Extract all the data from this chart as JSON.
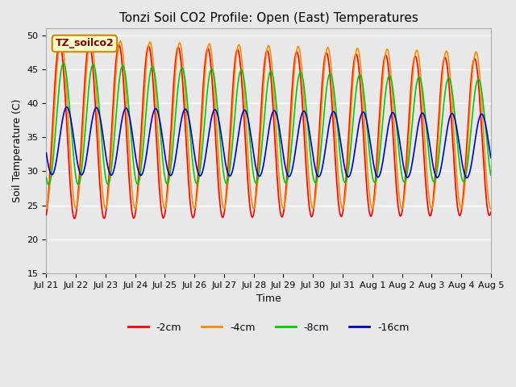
{
  "title": "Tonzi Soil CO2 Profile: Open (East) Temperatures",
  "ylabel": "Soil Temperature (C)",
  "xlabel": "Time",
  "ylim": [
    15,
    51
  ],
  "yticks": [
    15,
    20,
    25,
    30,
    35,
    40,
    45,
    50
  ],
  "background_color": "#e8e8e8",
  "grid_color": "#ffffff",
  "legend_label": "TZ_soilco2",
  "series": [
    {
      "label": "-2cm",
      "color": "#ff0000"
    },
    {
      "label": "-4cm",
      "color": "#ff8c00"
    },
    {
      "label": "-8cm",
      "color": "#00cc00"
    },
    {
      "label": "-16cm",
      "color": "#0000cc"
    }
  ],
  "n_days": 15,
  "x_tick_labels": [
    "Jul 21",
    "Jul 22",
    "Jul 23",
    "Jul 24",
    "Jul 25",
    "Jul 26",
    "Jul 27",
    "Jul 28",
    "Jul 29",
    "Jul 30",
    "Jul 31",
    "Aug 1",
    "Aug 2",
    "Aug 3",
    "Aug 4",
    "Aug 5"
  ]
}
